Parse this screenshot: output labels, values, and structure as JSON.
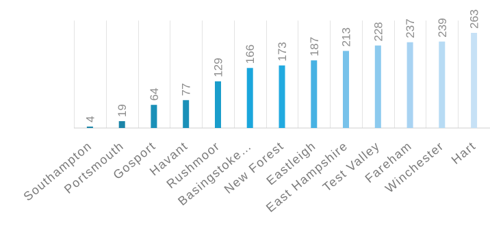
{
  "chart_data": {
    "type": "bar",
    "categories": [
      "Southampton",
      "Portsmouth",
      "Gosport",
      "Havant",
      "Rushmoor",
      "Basingstoke…",
      "New Forest",
      "Eastleigh",
      "East Hampshire",
      "Test Valley",
      "Fareham",
      "Winchester",
      "Hart"
    ],
    "values": [
      4,
      19,
      64,
      77,
      129,
      166,
      173,
      187,
      213,
      228,
      237,
      239,
      263
    ],
    "title": "",
    "xlabel": "",
    "ylabel": "",
    "ylim": [
      0,
      263
    ],
    "grid": "vertical-separators",
    "legend": "none",
    "colors": [
      "#1b85a8",
      "#1b85a8",
      "#1a90b8",
      "#1a90b8",
      "#1a9dcb",
      "#1aa6dc",
      "#21aae0",
      "#47b2e3",
      "#78c2ea",
      "#8ccaee",
      "#a8d3f2",
      "#b7dbf4",
      "#c6e1f6"
    ]
  }
}
